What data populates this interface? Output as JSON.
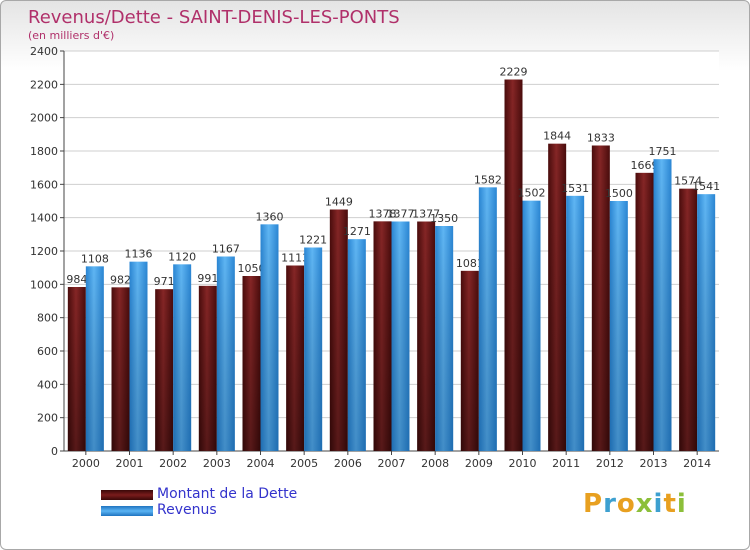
{
  "header": {
    "title": "Revenus/Dette - SAINT-DENIS-LES-PONTS",
    "subtitle": "(en milliers d'€)"
  },
  "legend": {
    "items": [
      {
        "label": "Montant de la Dette",
        "color": "#6e1414"
      },
      {
        "label": "Revenus",
        "color": "#3d9ee8"
      }
    ]
  },
  "logo": {
    "text": "Proxiti",
    "colors": [
      "#e8a020",
      "#3da0d0",
      "#e8a020",
      "#8cbf3a",
      "#3da0d0",
      "#e8a020",
      "#8cbf3a"
    ]
  },
  "chart_data": {
    "type": "bar",
    "title": "Revenus/Dette - SAINT-DENIS-LES-PONTS",
    "ylabel": "",
    "xlabel": "",
    "ylim": [
      0,
      2400
    ],
    "yticks": [
      0,
      200,
      400,
      600,
      800,
      1000,
      1200,
      1400,
      1600,
      1800,
      2000,
      2200,
      2400
    ],
    "grid": true,
    "categories": [
      "2000",
      "2001",
      "2002",
      "2003",
      "2004",
      "2005",
      "2006",
      "2007",
      "2008",
      "2009",
      "2010",
      "2011",
      "2012",
      "2013",
      "2014"
    ],
    "series": [
      {
        "name": "Montant de la Dette",
        "color": "#6e1414",
        "values": [
          984,
          982,
          971,
          991,
          1050,
          1113,
          1449,
          1378,
          1377,
          1081,
          2229,
          1844,
          1833,
          1669,
          1574
        ],
        "labels": [
          "984",
          "982",
          "971",
          "991",
          "1050",
          "1113",
          "1449",
          "1378",
          "1377",
          "1081",
          "2229",
          "1844",
          "1833",
          "1669",
          "1574"
        ]
      },
      {
        "name": "Revenus",
        "color": "#3d9ee8",
        "values": [
          1108,
          1136,
          1120,
          1167,
          1360,
          1221,
          1271,
          1377,
          1350,
          1582,
          1502,
          1531,
          1500,
          1751,
          1541
        ],
        "labels": [
          "1108",
          "1136",
          "1120",
          "1167",
          "1360",
          "1221",
          "1271",
          "1377",
          "1350",
          "1582",
          "1502",
          "1531",
          "1500",
          "1751",
          "1541"
        ]
      }
    ]
  }
}
